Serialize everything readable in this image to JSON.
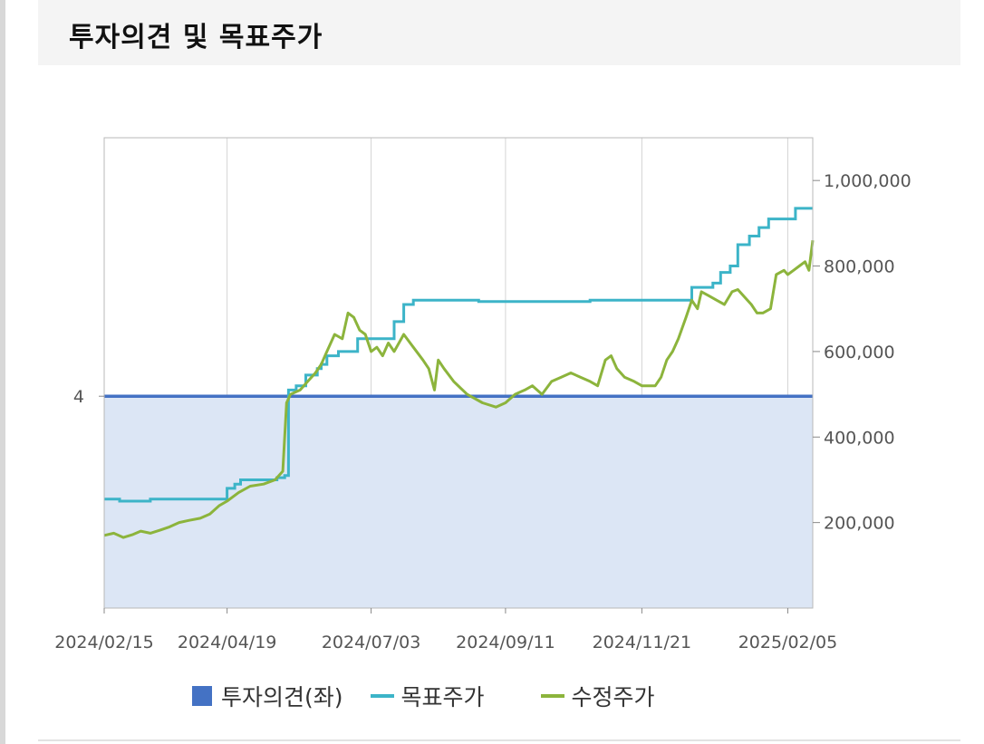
{
  "header": {
    "title": "투자의견 및 목표주가"
  },
  "colors": {
    "opinion": "#4472c4",
    "opinion_fill": "#dce6f5",
    "target": "#3cb4c8",
    "adjusted": "#8cb43c",
    "grid": "#d4d4d4",
    "axis_text": "#555555"
  },
  "chart_data": {
    "type": "line",
    "x_tick_labels": [
      "2024/02/15",
      "2024/04/19",
      "2024/07/03",
      "2024/09/11",
      "2024/11/21",
      "2025/02/05"
    ],
    "x_range": [
      "2024-02-15",
      "2025-02-18"
    ],
    "left_axis": {
      "ticks": [
        4
      ],
      "range": [
        1.5,
        7.05
      ]
    },
    "right_axis": {
      "ticks": [
        200000,
        400000,
        600000,
        800000,
        1000000
      ],
      "tick_labels": [
        "200,000",
        "400,000",
        "600,000",
        "800,000",
        "1,000,000"
      ],
      "range": [
        0,
        1100000
      ]
    },
    "grid": "vertical",
    "legend_position": "bottom",
    "series": [
      {
        "name": "투자의견(좌)",
        "axis": "left",
        "style": "area",
        "points": [
          [
            "2024-02-15",
            4
          ],
          [
            "2025-02-18",
            4
          ]
        ]
      },
      {
        "name": "목표주가",
        "axis": "right",
        "style": "step",
        "points": [
          [
            "2024-02-15",
            255000
          ],
          [
            "2024-02-20",
            255000
          ],
          [
            "2024-02-23",
            250000
          ],
          [
            "2024-03-07",
            250000
          ],
          [
            "2024-03-10",
            255000
          ],
          [
            "2024-04-15",
            255000
          ],
          [
            "2024-04-19",
            280000
          ],
          [
            "2024-04-23",
            290000
          ],
          [
            "2024-04-26",
            300000
          ],
          [
            "2024-05-15",
            305000
          ],
          [
            "2024-05-19",
            310000
          ],
          [
            "2024-05-21",
            510000
          ],
          [
            "2024-05-25",
            520000
          ],
          [
            "2024-05-30",
            545000
          ],
          [
            "2024-06-05",
            560000
          ],
          [
            "2024-06-07",
            570000
          ],
          [
            "2024-06-10",
            590000
          ],
          [
            "2024-06-16",
            600000
          ],
          [
            "2024-06-25",
            600000
          ],
          [
            "2024-06-26",
            630000
          ],
          [
            "2024-07-08",
            630000
          ],
          [
            "2024-07-15",
            670000
          ],
          [
            "2024-07-20",
            710000
          ],
          [
            "2024-07-25",
            720000
          ],
          [
            "2024-08-24",
            720000
          ],
          [
            "2024-08-28",
            717000
          ],
          [
            "2024-10-20",
            717000
          ],
          [
            "2024-10-25",
            720000
          ],
          [
            "2024-12-14",
            720000
          ],
          [
            "2024-12-17",
            750000
          ],
          [
            "2024-12-28",
            760000
          ],
          [
            "2025-01-01",
            785000
          ],
          [
            "2025-01-06",
            800000
          ],
          [
            "2025-01-10",
            850000
          ],
          [
            "2025-01-16",
            870000
          ],
          [
            "2025-01-21",
            890000
          ],
          [
            "2025-01-26",
            910000
          ],
          [
            "2025-02-05",
            910000
          ],
          [
            "2025-02-09",
            935000
          ],
          [
            "2025-02-18",
            935000
          ]
        ]
      },
      {
        "name": "수정주가",
        "axis": "right",
        "style": "line",
        "points": [
          [
            "2024-02-15",
            170000
          ],
          [
            "2024-02-20",
            175000
          ],
          [
            "2024-02-25",
            165000
          ],
          [
            "2024-03-01",
            172000
          ],
          [
            "2024-03-05",
            180000
          ],
          [
            "2024-03-10",
            175000
          ],
          [
            "2024-03-15",
            182000
          ],
          [
            "2024-03-20",
            190000
          ],
          [
            "2024-03-25",
            200000
          ],
          [
            "2024-03-30",
            205000
          ],
          [
            "2024-04-05",
            210000
          ],
          [
            "2024-04-10",
            220000
          ],
          [
            "2024-04-15",
            240000
          ],
          [
            "2024-04-19",
            250000
          ],
          [
            "2024-04-25",
            270000
          ],
          [
            "2024-05-01",
            285000
          ],
          [
            "2024-05-08",
            290000
          ],
          [
            "2024-05-14",
            300000
          ],
          [
            "2024-05-18",
            320000
          ],
          [
            "2024-05-20",
            480000
          ],
          [
            "2024-05-22",
            500000
          ],
          [
            "2024-05-27",
            510000
          ],
          [
            "2024-05-31",
            530000
          ],
          [
            "2024-06-04",
            550000
          ],
          [
            "2024-06-07",
            570000
          ],
          [
            "2024-06-10",
            600000
          ],
          [
            "2024-06-14",
            640000
          ],
          [
            "2024-06-18",
            630000
          ],
          [
            "2024-06-21",
            690000
          ],
          [
            "2024-06-24",
            680000
          ],
          [
            "2024-06-27",
            650000
          ],
          [
            "2024-06-30",
            640000
          ],
          [
            "2024-07-03",
            600000
          ],
          [
            "2024-07-06",
            610000
          ],
          [
            "2024-07-09",
            590000
          ],
          [
            "2024-07-12",
            620000
          ],
          [
            "2024-07-15",
            600000
          ],
          [
            "2024-07-20",
            640000
          ],
          [
            "2024-07-25",
            610000
          ],
          [
            "2024-07-30",
            580000
          ],
          [
            "2024-08-02",
            560000
          ],
          [
            "2024-08-05",
            510000
          ],
          [
            "2024-08-07",
            580000
          ],
          [
            "2024-08-10",
            560000
          ],
          [
            "2024-08-15",
            530000
          ],
          [
            "2024-08-22",
            500000
          ],
          [
            "2024-08-30",
            480000
          ],
          [
            "2024-09-06",
            470000
          ],
          [
            "2024-09-11",
            480000
          ],
          [
            "2024-09-16",
            500000
          ],
          [
            "2024-09-21",
            510000
          ],
          [
            "2024-09-25",
            520000
          ],
          [
            "2024-09-30",
            500000
          ],
          [
            "2024-10-05",
            530000
          ],
          [
            "2024-10-10",
            540000
          ],
          [
            "2024-10-15",
            550000
          ],
          [
            "2024-10-20",
            540000
          ],
          [
            "2024-10-25",
            530000
          ],
          [
            "2024-10-29",
            520000
          ],
          [
            "2024-11-02",
            580000
          ],
          [
            "2024-11-05",
            590000
          ],
          [
            "2024-11-08",
            560000
          ],
          [
            "2024-11-12",
            540000
          ],
          [
            "2024-11-17",
            530000
          ],
          [
            "2024-11-21",
            520000
          ],
          [
            "2024-11-28",
            520000
          ],
          [
            "2024-12-01",
            540000
          ],
          [
            "2024-12-04",
            580000
          ],
          [
            "2024-12-07",
            600000
          ],
          [
            "2024-12-10",
            630000
          ],
          [
            "2024-12-14",
            680000
          ],
          [
            "2024-12-17",
            720000
          ],
          [
            "2024-12-20",
            700000
          ],
          [
            "2024-12-22",
            740000
          ],
          [
            "2024-12-26",
            730000
          ],
          [
            "2024-12-30",
            720000
          ],
          [
            "2025-01-03",
            710000
          ],
          [
            "2025-01-07",
            740000
          ],
          [
            "2025-01-10",
            745000
          ],
          [
            "2025-01-13",
            730000
          ],
          [
            "2025-01-17",
            710000
          ],
          [
            "2025-01-20",
            690000
          ],
          [
            "2025-01-23",
            690000
          ],
          [
            "2025-01-27",
            700000
          ],
          [
            "2025-01-30",
            780000
          ],
          [
            "2025-02-03",
            790000
          ],
          [
            "2025-02-05",
            780000
          ],
          [
            "2025-02-08",
            790000
          ],
          [
            "2025-02-11",
            800000
          ],
          [
            "2025-02-14",
            810000
          ],
          [
            "2025-02-16",
            790000
          ],
          [
            "2025-02-18",
            860000
          ]
        ]
      }
    ]
  }
}
